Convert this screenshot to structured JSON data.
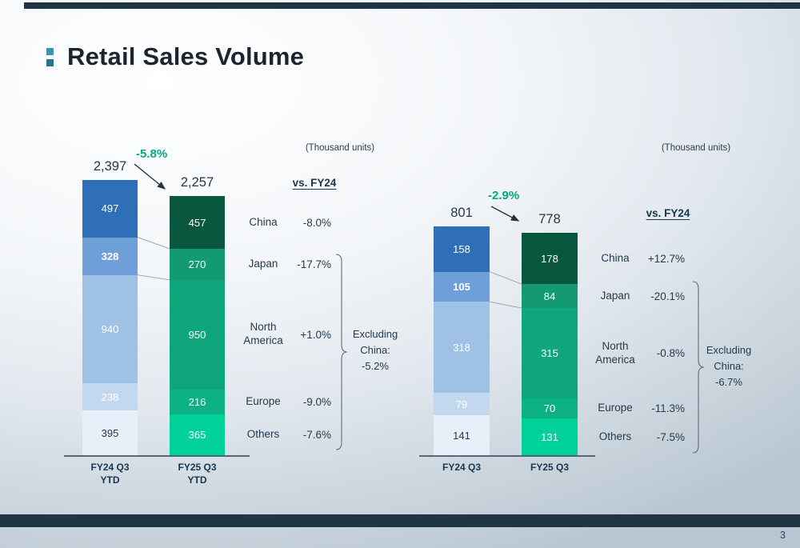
{
  "slide": {
    "title": "Retail Sales Volume",
    "page_number": "3"
  },
  "chart_data": [
    {
      "type": "stacked-bar",
      "unit_label": "(Thousand units)",
      "change_label": "-5.8%",
      "vs_header": "vs. FY24",
      "categories": [
        "China",
        "Japan",
        "North America",
        "Europe",
        "Others"
      ],
      "bars": [
        {
          "label": "FY24 Q3\nYTD",
          "total_display": "2,397",
          "total": 2397,
          "segments": [
            497,
            328,
            940,
            238,
            395
          ]
        },
        {
          "label": "FY25 Q3\nYTD",
          "total_display": "2,257",
          "total": 2257,
          "segments": [
            457,
            270,
            950,
            216,
            365
          ]
        }
      ],
      "vs_values": [
        "-8.0%",
        "-17.7%",
        "+1.0%",
        "-9.0%",
        "-7.6%"
      ],
      "excluding_lines": [
        "Excluding",
        "China:",
        "-5.2%"
      ]
    },
    {
      "type": "stacked-bar",
      "unit_label": "(Thousand units)",
      "change_label": "-2.9%",
      "vs_header": "vs. FY24",
      "categories": [
        "China",
        "Japan",
        "North America",
        "Europe",
        "Others"
      ],
      "bars": [
        {
          "label": "FY24 Q3",
          "total_display": "801",
          "total": 801,
          "segments": [
            158,
            105,
            318,
            79,
            141
          ]
        },
        {
          "label": "FY25 Q3",
          "total_display": "778",
          "total": 778,
          "segments": [
            178,
            84,
            315,
            70,
            131
          ]
        }
      ],
      "vs_values": [
        "+12.7%",
        "-20.1%",
        "-0.8%",
        "-11.3%",
        "-7.5%"
      ],
      "excluding_lines": [
        "Excluding",
        "China:",
        "-6.7%"
      ]
    }
  ],
  "colors": {
    "fy24_segments": [
      "#2e6fb7",
      "#6f9fd8",
      "#9fc1e6",
      "#c2d8ef",
      "#e9eff8"
    ],
    "fy24_text": [
      "#ffffff",
      "#ffffff",
      "#ffffff",
      "#ffffff",
      "#23384e"
    ],
    "fy25_segments": [
      "#0a5740",
      "#139a73",
      "#10a67c",
      "#0cb184",
      "#00d09a"
    ],
    "fy25_text": [
      "#ffffff",
      "#ffffff",
      "#ffffff",
      "#ffffff",
      "#ffffff"
    ],
    "change_green": "#00a87e",
    "dark_text": "#233a50",
    "accent_bar": "#1d3545",
    "bullet_top": "#3e95aa",
    "bullet_bottom": "#27758b",
    "page_number_color": "#2a425c"
  }
}
